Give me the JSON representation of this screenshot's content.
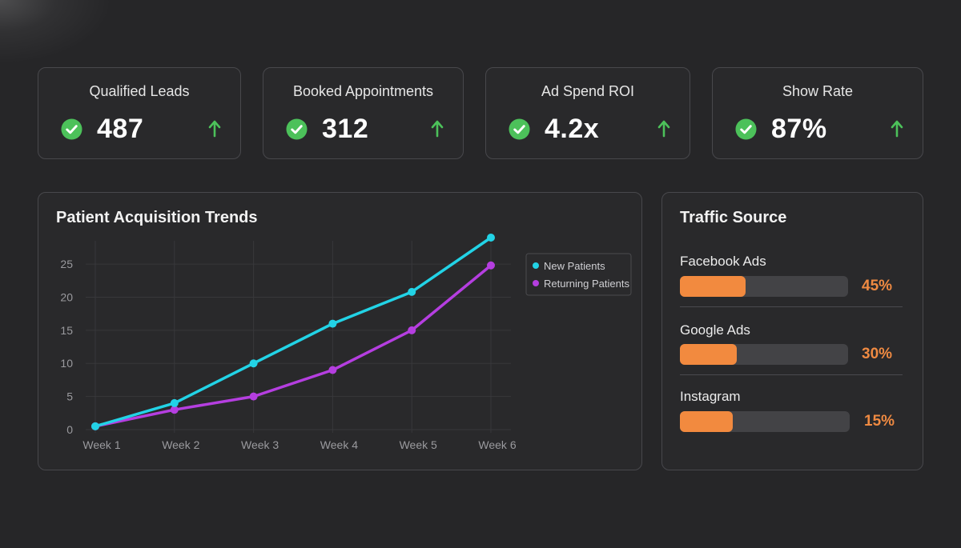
{
  "kpis": [
    {
      "label": "Qualified Leads",
      "value": "487",
      "status_icon": "check-circle-icon",
      "trend_icon": "arrow-up-icon"
    },
    {
      "label": "Booked Appointments",
      "value": "312",
      "status_icon": "check-circle-icon",
      "trend_icon": "arrow-up-icon"
    },
    {
      "label": "Ad Spend ROI",
      "value": "4.2x",
      "status_icon": "check-circle-icon",
      "trend_icon": "arrow-up-icon"
    },
    {
      "label": "Show Rate",
      "value": "87%",
      "status_icon": "check-circle-icon",
      "trend_icon": "arrow-up-icon"
    }
  ],
  "trends": {
    "title": "Patient Acquisition Trends"
  },
  "traffic": {
    "title": "Traffic Source",
    "sources": [
      {
        "name": "Facebook Ads",
        "pct_label": "45%",
        "fill": 0.39
      },
      {
        "name": "Google Ads",
        "pct_label": "30%",
        "fill": 0.34
      },
      {
        "name": "Instagram",
        "pct_label": "15%",
        "fill": 0.31
      }
    ]
  },
  "colors": {
    "background": "#262628",
    "card": "#29292b",
    "border": "#48484c",
    "check_green": "#4cc15a",
    "arrow_green": "#4cc15a",
    "new_patients": "#22d3e6",
    "returning_patients": "#b53ee0",
    "bar_orange": "#f28a3f",
    "pct_orange": "#ef8a42"
  },
  "chart_data": {
    "type": "line",
    "title": "Patient Acquisition Trends",
    "categories": [
      "Week 1",
      "Week 2",
      "Week 3",
      "Week 4",
      "Week 5",
      "Week 6"
    ],
    "series": [
      {
        "name": "New Patients",
        "values": [
          0.5,
          4,
          10,
          16,
          20.8,
          29
        ],
        "color": "#22d3e6"
      },
      {
        "name": "Returning Patients",
        "values": [
          0.5,
          3,
          5,
          9,
          15,
          24.8
        ],
        "color": "#b53ee0"
      }
    ],
    "yticks": [
      0,
      5,
      10,
      15,
      20,
      25
    ],
    "ylim": [
      0,
      29
    ],
    "xlabel": "",
    "ylabel": "",
    "grid": true,
    "legend": "top-right"
  }
}
